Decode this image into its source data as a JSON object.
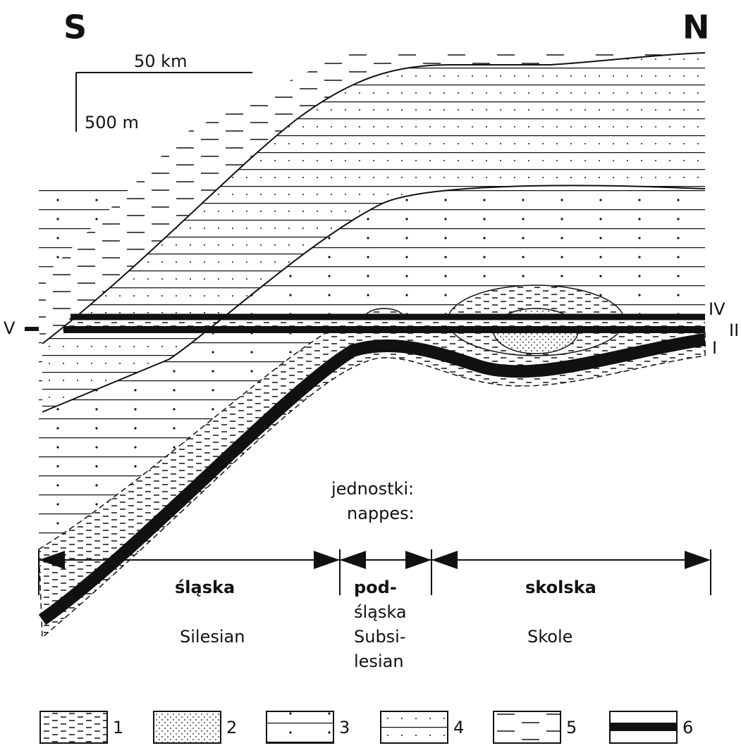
{
  "compass": {
    "south": "S",
    "north": "N"
  },
  "scale": {
    "horizontal": "50 km",
    "vertical": "500 m"
  },
  "horizons": [
    "V",
    "IV",
    "II",
    "I"
  ],
  "units": {
    "heading": [
      "jednostki:",
      "nappes:"
    ],
    "nappes": [
      {
        "polish": [
          "śląska"
        ],
        "english": [
          "Silesian"
        ]
      },
      {
        "polish": [
          "pod-",
          "śląska"
        ],
        "english": [
          "Subsi-",
          "lesian"
        ]
      },
      {
        "polish": [
          "skolska"
        ],
        "english": [
          "Skole"
        ]
      }
    ]
  },
  "legend": [
    1,
    2,
    3,
    4,
    5,
    6
  ]
}
